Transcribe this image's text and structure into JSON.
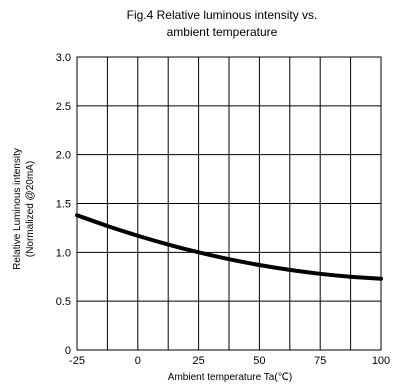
{
  "chart_data": {
    "type": "line",
    "title": [
      "Fig.4 Relative luminous intensity vs.",
      "ambient temperature"
    ],
    "xlabel": "Ambient temperature Ta(℃)",
    "ylabel": [
      "Relative Luminous intensity",
      "(Normalized @20mA)"
    ],
    "xlim": [
      -25,
      100
    ],
    "ylim": [
      0,
      3.0
    ],
    "x_ticks": [
      -25,
      0,
      25,
      50,
      75,
      100
    ],
    "x_tick_labels": [
      "-25",
      "0",
      "25",
      "50",
      "75",
      "100"
    ],
    "y_ticks": [
      0,
      0.5,
      1.0,
      1.5,
      2.0,
      2.5,
      3.0
    ],
    "y_tick_labels": [
      "0",
      "0.5",
      "1.0",
      "1.5",
      "2.0",
      "2.5",
      "3.0"
    ],
    "grid": true,
    "series": [
      {
        "x": [
          -25,
          -12.5,
          0,
          12.5,
          25,
          37.5,
          50,
          62.5,
          75,
          87.5,
          100
        ],
        "y": [
          1.38,
          1.27,
          1.17,
          1.08,
          1.0,
          0.93,
          0.87,
          0.82,
          0.78,
          0.75,
          0.73
        ],
        "color": "#000000"
      }
    ]
  }
}
